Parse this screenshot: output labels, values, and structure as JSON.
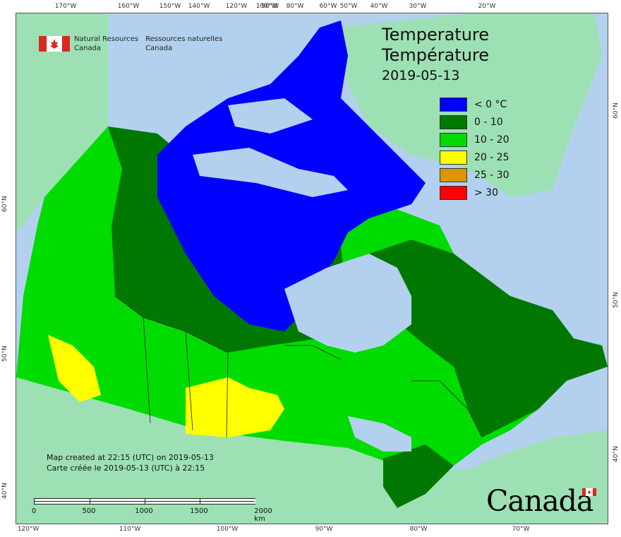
{
  "map": {
    "title_en": "Temperature",
    "title_fr": "Température",
    "date": "2019-05-13",
    "agency": {
      "name_en_1": "Natural Resources",
      "name_en_2": "Canada",
      "name_fr_1": "Ressources naturelles",
      "name_fr_2": "Canada"
    },
    "legend": [
      {
        "label": "< 0 °C",
        "color": "#0000ff"
      },
      {
        "label": "0 - 10",
        "color": "#007800"
      },
      {
        "label": "10 - 20",
        "color": "#00dc00"
      },
      {
        "label": "20 - 25",
        "color": "#ffff00"
      },
      {
        "label": "25 - 30",
        "color": "#dc9600"
      },
      {
        "label": "> 30",
        "color": "#ff0000"
      }
    ],
    "credits": {
      "line_en": "Map created at 22:15 (UTC) on 2019-05-13",
      "line_fr": "Carte créée le 2019-05-13 (UTC) à 22:15"
    },
    "scale": {
      "labels": [
        "0",
        "500",
        "1000",
        "1500",
        "2000  km"
      ]
    },
    "wordmark": "Canada",
    "graticule": {
      "top": [
        "170°W",
        "160°W",
        "150°W",
        "140°W",
        "120°W",
        "100°W",
        "90°W",
        "80°W",
        "60°W",
        "50°W",
        "40°W",
        "30°W",
        "20°W"
      ],
      "bottom": [
        "120°W",
        "110°W",
        "100°W",
        "90°W",
        "80°W",
        "70°W"
      ],
      "left": [
        "60°N",
        "50°N",
        "40°N"
      ],
      "right": [
        "60°N",
        "50°N",
        "40°N"
      ]
    },
    "colors": {
      "water": "#b3d1ee",
      "foreign_land": "#9de0b4",
      "lake": "#b3d1ee"
    }
  }
}
